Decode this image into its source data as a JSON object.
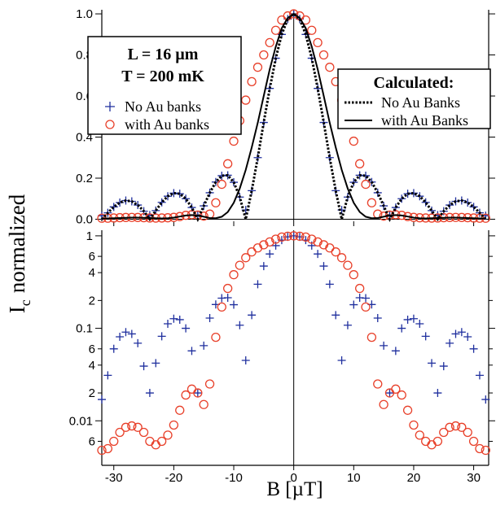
{
  "chart_data": [
    {
      "type": "line",
      "ylabel": {
        "main": "I",
        "subscript": "c",
        "rest": "normalized"
      },
      "annotations": [
        "L = 16 µm",
        "T = 200 mK"
      ],
      "legend_title": "Calculated:",
      "x": [
        -32,
        -31,
        -30,
        -29,
        -28,
        -27,
        -26,
        -25,
        -24,
        -23,
        -22,
        -21,
        -20,
        -19,
        -18,
        -17,
        -16,
        -15,
        -14,
        -13,
        -12,
        -11,
        -10,
        -9,
        -8,
        -7,
        -6,
        -5,
        -4,
        -3,
        -2,
        -1,
        0,
        1,
        2,
        3,
        4,
        5,
        6,
        7,
        8,
        9,
        10,
        11,
        12,
        13,
        14,
        15,
        16,
        17,
        18,
        19,
        20,
        21,
        22,
        23,
        24,
        25,
        26,
        27,
        28,
        29,
        30,
        31,
        32
      ],
      "xlim": [
        -32,
        32.5
      ],
      "ylim": [
        -0.01,
        1.02
      ],
      "yticks": [
        {
          "value": 0,
          "label": "0.0"
        },
        0.2,
        0.4,
        0.6,
        0.8,
        {
          "value": 1,
          "label": "1.0"
        }
      ],
      "series": [
        {
          "name": "No Au banks",
          "color": "#1f2f9e",
          "marker": "+",
          "values": [
            0.017,
            0.031,
            0.06,
            0.081,
            0.091,
            0.087,
            0.069,
            0.039,
            0.02,
            0.042,
            0.082,
            0.112,
            0.127,
            0.124,
            0.1,
            0.057,
            0.02,
            0.065,
            0.129,
            0.181,
            0.212,
            0.214,
            0.18,
            0.108,
            0.045,
            0.139,
            0.3,
            0.471,
            0.637,
            0.784,
            0.9,
            0.975,
            1,
            0.975,
            0.9,
            0.784,
            0.637,
            0.471,
            0.3,
            0.139,
            0.045,
            0.108,
            0.18,
            0.214,
            0.212,
            0.181,
            0.129,
            0.065,
            0.02,
            0.057,
            0.1,
            0.124,
            0.127,
            0.112,
            0.082,
            0.042,
            0.02,
            0.039,
            0.069,
            0.087,
            0.091,
            0.081,
            0.06,
            0.031,
            0.017
          ]
        },
        {
          "name": "with Au banks",
          "color": "#e8402a",
          "marker": "o",
          "values": [
            0.0048,
            0.005,
            0.006,
            0.0075,
            0.0085,
            0.0088,
            0.0085,
            0.0075,
            0.006,
            0.0055,
            0.006,
            0.007,
            0.009,
            0.013,
            0.019,
            0.022,
            0.02,
            0.015,
            0.025,
            0.08,
            0.17,
            0.27,
            0.38,
            0.48,
            0.58,
            0.67,
            0.74,
            0.8,
            0.86,
            0.92,
            0.97,
            0.99,
            1,
            0.99,
            0.97,
            0.92,
            0.86,
            0.8,
            0.74,
            0.67,
            0.58,
            0.48,
            0.38,
            0.27,
            0.17,
            0.08,
            0.025,
            0.015,
            0.02,
            0.022,
            0.019,
            0.013,
            0.009,
            0.007,
            0.006,
            0.0055,
            0.006,
            0.0075,
            0.0085,
            0.0088,
            0.0085,
            0.0075,
            0.006,
            0.005,
            0.0048
          ]
        },
        {
          "name": "No Au Banks",
          "color": "#000000",
          "line": "dotted",
          "values": [
            0,
            0.031,
            0.06,
            0.081,
            0.091,
            0.087,
            0.069,
            0.039,
            0,
            0.042,
            0.082,
            0.112,
            0.127,
            0.124,
            0.1,
            0.057,
            0,
            0.065,
            0.129,
            0.181,
            0.212,
            0.214,
            0.18,
            0.108,
            0,
            0.139,
            0.3,
            0.471,
            0.637,
            0.784,
            0.9,
            0.975,
            1,
            0.975,
            0.9,
            0.784,
            0.637,
            0.471,
            0.3,
            0.139,
            0,
            0.108,
            0.18,
            0.214,
            0.212,
            0.181,
            0.129,
            0.065,
            0,
            0.057,
            0.1,
            0.124,
            0.127,
            0.112,
            0.082,
            0.042,
            0,
            0.039,
            0.069,
            0.087,
            0.091,
            0.081,
            0.06,
            0.031,
            0
          ]
        },
        {
          "name": "with Au Banks",
          "color": "#000000",
          "line": "solid",
          "values": [
            0.004,
            0.004,
            0.005,
            0.006,
            0.007,
            0.008,
            0.008,
            0.007,
            0.006,
            0.005,
            0.004,
            0.005,
            0.008,
            0.013,
            0.018,
            0.02,
            0.018,
            0.012,
            0.006,
            0.005,
            0.012,
            0.035,
            0.08,
            0.15,
            0.24,
            0.35,
            0.47,
            0.6,
            0.73,
            0.84,
            0.93,
            0.98,
            1,
            0.98,
            0.93,
            0.84,
            0.73,
            0.6,
            0.47,
            0.35,
            0.24,
            0.15,
            0.08,
            0.035,
            0.012,
            0.005,
            0.006,
            0.012,
            0.018,
            0.02,
            0.018,
            0.013,
            0.008,
            0.005,
            0.004,
            0.005,
            0.006,
            0.007,
            0.008,
            0.008,
            0.007,
            0.006,
            0.005,
            0.004,
            0.004
          ]
        }
      ]
    },
    {
      "type": "line",
      "log_y": true,
      "xlabel": "B  [µT]",
      "x": [
        -32,
        -31,
        -30,
        -29,
        -28,
        -27,
        -26,
        -25,
        -24,
        -23,
        -22,
        -21,
        -20,
        -19,
        -18,
        -17,
        -16,
        -15,
        -14,
        -13,
        -12,
        -11,
        -10,
        -9,
        -8,
        -7,
        -6,
        -5,
        -4,
        -3,
        -2,
        -1,
        0,
        1,
        2,
        3,
        4,
        5,
        6,
        7,
        8,
        9,
        10,
        11,
        12,
        13,
        14,
        15,
        16,
        17,
        18,
        19,
        20,
        21,
        22,
        23,
        24,
        25,
        26,
        27,
        28,
        29,
        30,
        31,
        32
      ],
      "xlim": [
        -32,
        32.5
      ],
      "xticks": [
        -30,
        -20,
        -10,
        0,
        10,
        20,
        30
      ],
      "ylim": [
        0.0033,
        1.15
      ],
      "yticks": [
        1,
        {
          "value": 0.6,
          "label": "6"
        },
        {
          "value": 0.4,
          "label": "4"
        },
        {
          "value": 0.2,
          "label": "2"
        },
        0.1,
        {
          "value": 0.06,
          "label": "6"
        },
        {
          "value": 0.04,
          "label": "4"
        },
        {
          "value": 0.02,
          "label": "2"
        },
        0.01,
        {
          "value": 0.006,
          "label": "6"
        }
      ],
      "series": [
        {
          "color": "#1f2f9e",
          "marker": "+",
          "values": [
            0.017,
            0.031,
            0.06,
            0.081,
            0.091,
            0.087,
            0.069,
            0.039,
            0.02,
            0.042,
            0.082,
            0.112,
            0.127,
            0.124,
            0.1,
            0.057,
            0.02,
            0.065,
            0.129,
            0.181,
            0.212,
            0.214,
            0.18,
            0.108,
            0.045,
            0.139,
            0.3,
            0.471,
            0.637,
            0.784,
            0.9,
            0.975,
            1,
            0.975,
            0.9,
            0.784,
            0.637,
            0.471,
            0.3,
            0.139,
            0.045,
            0.108,
            0.18,
            0.214,
            0.212,
            0.181,
            0.129,
            0.065,
            0.02,
            0.057,
            0.1,
            0.124,
            0.127,
            0.112,
            0.082,
            0.042,
            0.02,
            0.039,
            0.069,
            0.087,
            0.091,
            0.081,
            0.06,
            0.031,
            0.017
          ]
        },
        {
          "color": "#e8402a",
          "marker": "o",
          "values": [
            0.0048,
            0.005,
            0.006,
            0.0075,
            0.0085,
            0.0088,
            0.0085,
            0.0075,
            0.006,
            0.0055,
            0.006,
            0.007,
            0.009,
            0.013,
            0.019,
            0.022,
            0.02,
            0.015,
            0.025,
            0.08,
            0.17,
            0.27,
            0.38,
            0.48,
            0.58,
            0.67,
            0.74,
            0.8,
            0.86,
            0.92,
            0.97,
            0.99,
            1,
            0.99,
            0.97,
            0.92,
            0.86,
            0.8,
            0.74,
            0.67,
            0.58,
            0.48,
            0.38,
            0.27,
            0.17,
            0.08,
            0.025,
            0.015,
            0.02,
            0.022,
            0.019,
            0.013,
            0.009,
            0.007,
            0.006,
            0.0055,
            0.006,
            0.0075,
            0.0085,
            0.0088,
            0.0085,
            0.0075,
            0.006,
            0.005,
            0.0048
          ]
        }
      ]
    }
  ]
}
